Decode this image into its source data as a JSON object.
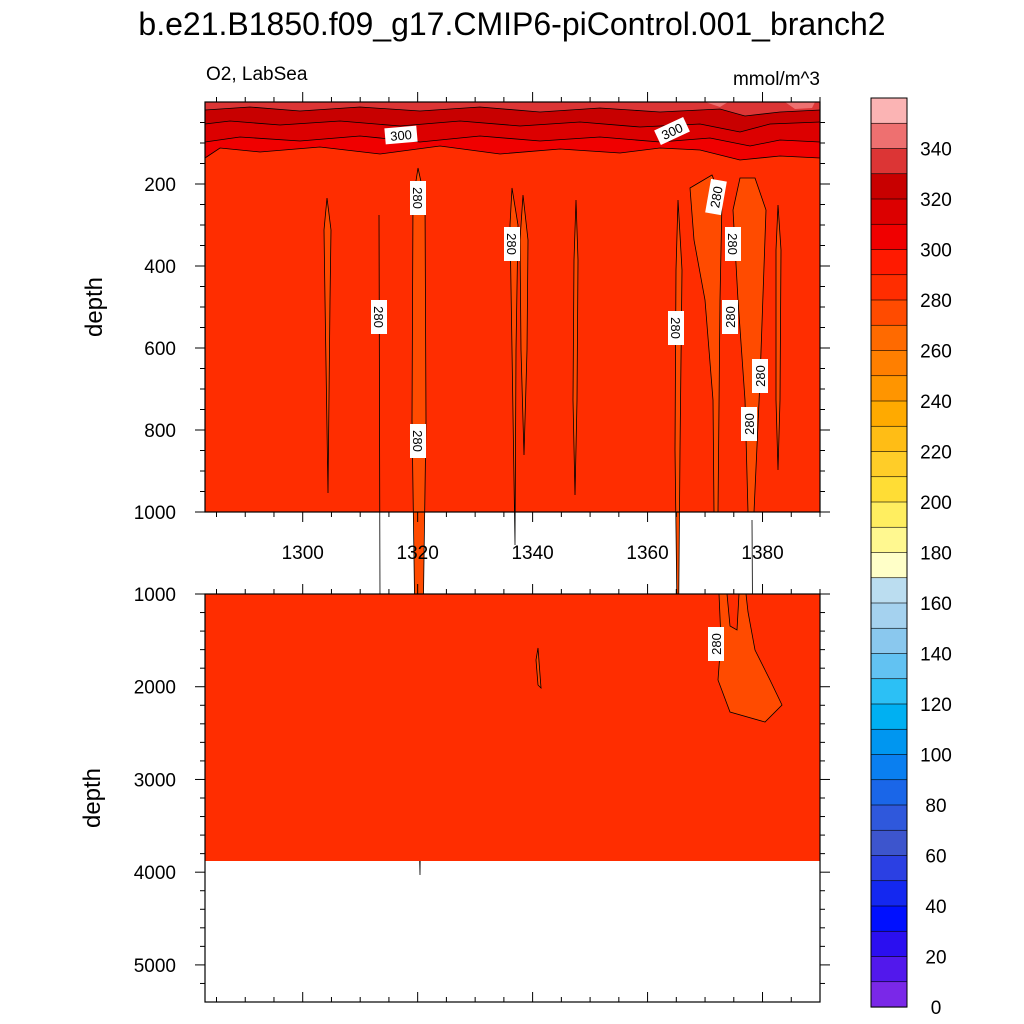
{
  "title": "b.e21.B1850.f09_g17.CMIP6-piControl.001_branch2",
  "variable_label": "O2, LabSea",
  "units_label": "mmol/m^3",
  "chart_data": [
    {
      "type": "heatmap",
      "panel": "upper",
      "title": "O2, LabSea",
      "xlabel": "",
      "ylabel": "depth",
      "xlim": [
        1283,
        1390
      ],
      "ylim": [
        1000,
        0
      ],
      "x_ticks": [
        1300,
        1320,
        1340,
        1360,
        1380
      ],
      "y_ticks": [
        200,
        400,
        600,
        800,
        1000
      ],
      "background_value": 285,
      "surface_values": [
        340,
        330,
        320,
        310,
        300
      ],
      "contour_labels": [
        "300",
        "300",
        "280",
        "280",
        "280",
        "280",
        "280",
        "280",
        "280",
        "280",
        "280",
        "280"
      ]
    },
    {
      "type": "heatmap",
      "panel": "lower",
      "xlabel": "",
      "ylabel": "depth",
      "xlim": [
        1283,
        1390
      ],
      "ylim": [
        5400,
        1000
      ],
      "y_ticks": [
        1000,
        2000,
        3000,
        4000,
        5000
      ],
      "background_value": 285,
      "data_floor_depth": 3850,
      "contour_labels": [
        "280"
      ]
    }
  ],
  "colorbar": {
    "labels": [
      "340",
      "320",
      "300",
      "280",
      "260",
      "240",
      "220",
      "200",
      "180",
      "160",
      "140",
      "120",
      "100",
      "80",
      "60",
      "40",
      "20",
      "0"
    ],
    "colors": [
      "#fbb4b4",
      "#ee7070",
      "#dc3535",
      "#c80000",
      "#dc0000",
      "#f00000",
      "#ff1a00",
      "#ff2d00",
      "#ff4b00",
      "#ff6a00",
      "#ff7f00",
      "#ff9500",
      "#ffaa00",
      "#ffbd15",
      "#ffcd28",
      "#ffdd35",
      "#ffee60",
      "#fff890",
      "#ffffc8",
      "#bbddf0",
      "#a5d2ef",
      "#8ac8ee",
      "#62c2f2",
      "#2cc0f5",
      "#00b0f2",
      "#0096f0",
      "#0a7ff0",
      "#1a66e8",
      "#2f58dc",
      "#3d55cd",
      "#2b40e3",
      "#1428f0",
      "#0010ff",
      "#2b0ff0",
      "#5218ec",
      "#7a28e8"
    ]
  }
}
